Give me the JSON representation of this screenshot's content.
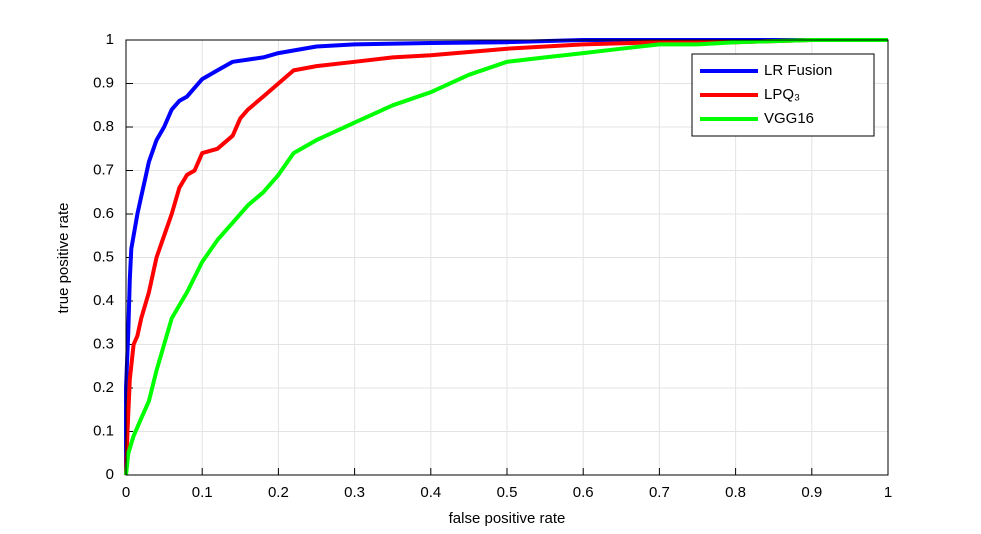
{
  "chart_data": {
    "type": "line",
    "xlabel": "false positive rate",
    "ylabel": "true positive rate",
    "xlim": [
      0,
      1
    ],
    "ylim": [
      0,
      1
    ],
    "xticks": [
      0,
      0.1,
      0.2,
      0.3,
      0.4,
      0.5,
      0.6,
      0.7,
      0.8,
      0.9,
      1
    ],
    "yticks": [
      0,
      0.1,
      0.2,
      0.3,
      0.4,
      0.5,
      0.6,
      0.7,
      0.8,
      0.9,
      1
    ],
    "grid": true,
    "legend": "northeast",
    "series": [
      {
        "name": "LR Fusion",
        "color": "#0000ff",
        "x": [
          0,
          0,
          0.003,
          0.005,
          0.007,
          0.01,
          0.015,
          0.02,
          0.025,
          0.03,
          0.04,
          0.05,
          0.06,
          0.07,
          0.08,
          0.09,
          0.1,
          0.12,
          0.14,
          0.16,
          0.18,
          0.2,
          0.25,
          0.3,
          0.4,
          0.5,
          0.6,
          0.8,
          1
        ],
        "values": [
          0,
          0.2,
          0.33,
          0.45,
          0.52,
          0.55,
          0.6,
          0.64,
          0.68,
          0.72,
          0.77,
          0.8,
          0.84,
          0.86,
          0.87,
          0.89,
          0.91,
          0.93,
          0.95,
          0.955,
          0.96,
          0.97,
          0.985,
          0.99,
          0.993,
          0.995,
          1,
          1,
          1
        ]
      },
      {
        "name": "LPQ₃",
        "color": "#ff0000",
        "x": [
          0,
          0.002,
          0.005,
          0.01,
          0.015,
          0.02,
          0.03,
          0.04,
          0.05,
          0.06,
          0.07,
          0.08,
          0.09,
          0.1,
          0.12,
          0.14,
          0.15,
          0.16,
          0.18,
          0.2,
          0.22,
          0.25,
          0.3,
          0.35,
          0.4,
          0.5,
          0.6,
          0.7,
          0.8,
          0.9,
          1
        ],
        "values": [
          0,
          0.1,
          0.22,
          0.3,
          0.32,
          0.36,
          0.42,
          0.5,
          0.55,
          0.6,
          0.66,
          0.69,
          0.7,
          0.74,
          0.75,
          0.78,
          0.82,
          0.84,
          0.87,
          0.9,
          0.93,
          0.94,
          0.95,
          0.96,
          0.965,
          0.98,
          0.99,
          0.995,
          0.995,
          1,
          1
        ]
      },
      {
        "name": "VGG16",
        "color": "#00ff00",
        "x": [
          0,
          0.003,
          0.01,
          0.02,
          0.03,
          0.04,
          0.05,
          0.06,
          0.07,
          0.08,
          0.1,
          0.12,
          0.14,
          0.16,
          0.18,
          0.2,
          0.22,
          0.25,
          0.3,
          0.35,
          0.4,
          0.45,
          0.5,
          0.55,
          0.6,
          0.65,
          0.7,
          0.75,
          0.8,
          0.9,
          1
        ],
        "values": [
          0,
          0.05,
          0.09,
          0.13,
          0.17,
          0.24,
          0.3,
          0.36,
          0.39,
          0.42,
          0.49,
          0.54,
          0.58,
          0.62,
          0.65,
          0.69,
          0.74,
          0.77,
          0.81,
          0.85,
          0.88,
          0.92,
          0.95,
          0.96,
          0.97,
          0.98,
          0.99,
          0.99,
          0.995,
          1,
          1
        ]
      }
    ]
  }
}
